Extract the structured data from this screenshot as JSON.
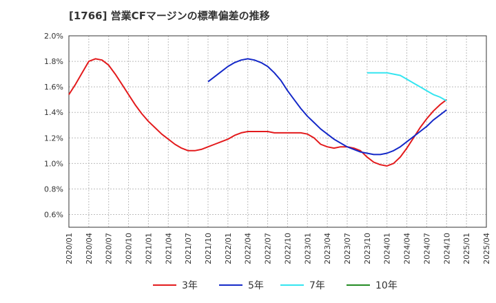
{
  "chart_data": {
    "type": "line",
    "title": "[1766]  営業CFマージンの標準偏差の推移",
    "y_axis": {
      "min": 0.005,
      "max": 0.02,
      "ticks": [
        "2.0%",
        "1.8%",
        "1.6%",
        "1.4%",
        "1.2%",
        "1.0%",
        "0.8%",
        "0.6%"
      ],
      "tick_values": [
        0.02,
        0.018,
        0.016,
        0.014,
        0.012,
        0.01,
        0.008,
        0.006
      ],
      "grid": true
    },
    "x_axis": {
      "ticks": [
        "2020/01",
        "2020/04",
        "2020/07",
        "2020/10",
        "2021/01",
        "2021/04",
        "2021/07",
        "2021/10",
        "2022/01",
        "2022/04",
        "2022/07",
        "2022/10",
        "2023/01",
        "2023/04",
        "2023/07",
        "2023/10",
        "2024/01",
        "2024/04",
        "2024/07",
        "2024/10",
        "2025/01",
        "2025/04"
      ],
      "grid": true
    },
    "legend_position": "bottom",
    "series": [
      {
        "name": "3年",
        "color": "#e31a1c",
        "points": [
          [
            "2020/01",
            0.0154
          ],
          [
            "2020/02",
            0.0162
          ],
          [
            "2020/03",
            0.0171
          ],
          [
            "2020/04",
            0.018
          ],
          [
            "2020/05",
            0.0182
          ],
          [
            "2020/06",
            0.0181
          ],
          [
            "2020/07",
            0.0177
          ],
          [
            "2020/08",
            0.017
          ],
          [
            "2020/09",
            0.0162
          ],
          [
            "2020/10",
            0.0154
          ],
          [
            "2020/11",
            0.0146
          ],
          [
            "2020/12",
            0.0139
          ],
          [
            "2021/01",
            0.0133
          ],
          [
            "2021/02",
            0.0128
          ],
          [
            "2021/03",
            0.0123
          ],
          [
            "2021/04",
            0.0119
          ],
          [
            "2021/05",
            0.0115
          ],
          [
            "2021/06",
            0.0112
          ],
          [
            "2021/07",
            0.011
          ],
          [
            "2021/08",
            0.011
          ],
          [
            "2021/09",
            0.0111
          ],
          [
            "2021/10",
            0.0113
          ],
          [
            "2021/11",
            0.0115
          ],
          [
            "2021/12",
            0.0117
          ],
          [
            "2022/01",
            0.0119
          ],
          [
            "2022/02",
            0.0122
          ],
          [
            "2022/03",
            0.0124
          ],
          [
            "2022/04",
            0.0125
          ],
          [
            "2022/05",
            0.0125
          ],
          [
            "2022/06",
            0.0125
          ],
          [
            "2022/07",
            0.0125
          ],
          [
            "2022/08",
            0.0124
          ],
          [
            "2022/09",
            0.0124
          ],
          [
            "2022/10",
            0.0124
          ],
          [
            "2022/11",
            0.0124
          ],
          [
            "2022/12",
            0.0124
          ],
          [
            "2023/01",
            0.0123
          ],
          [
            "2023/02",
            0.012
          ],
          [
            "2023/03",
            0.0115
          ],
          [
            "2023/04",
            0.0113
          ],
          [
            "2023/05",
            0.0112
          ],
          [
            "2023/06",
            0.0113
          ],
          [
            "2023/07",
            0.0113
          ],
          [
            "2023/08",
            0.0112
          ],
          [
            "2023/09",
            0.011
          ],
          [
            "2023/10",
            0.0105
          ],
          [
            "2023/11",
            0.0101
          ],
          [
            "2023/12",
            0.0099
          ],
          [
            "2024/01",
            0.0098
          ],
          [
            "2024/02",
            0.01
          ],
          [
            "2024/03",
            0.0105
          ],
          [
            "2024/04",
            0.0112
          ],
          [
            "2024/05",
            0.012
          ],
          [
            "2024/06",
            0.0128
          ],
          [
            "2024/07",
            0.0135
          ],
          [
            "2024/08",
            0.0141
          ],
          [
            "2024/09",
            0.0146
          ],
          [
            "2024/10",
            0.015
          ]
        ]
      },
      {
        "name": "5年",
        "color": "#1428c8",
        "points": [
          [
            "2021/10",
            0.0164
          ],
          [
            "2021/11",
            0.0168
          ],
          [
            "2021/12",
            0.0172
          ],
          [
            "2022/01",
            0.0176
          ],
          [
            "2022/02",
            0.0179
          ],
          [
            "2022/03",
            0.0181
          ],
          [
            "2022/04",
            0.0182
          ],
          [
            "2022/05",
            0.0181
          ],
          [
            "2022/06",
            0.0179
          ],
          [
            "2022/07",
            0.0176
          ],
          [
            "2022/08",
            0.0171
          ],
          [
            "2022/09",
            0.0165
          ],
          [
            "2022/10",
            0.0157
          ],
          [
            "2022/11",
            0.015
          ],
          [
            "2022/12",
            0.0143
          ],
          [
            "2023/01",
            0.0137
          ],
          [
            "2023/02",
            0.0132
          ],
          [
            "2023/03",
            0.0127
          ],
          [
            "2023/04",
            0.0123
          ],
          [
            "2023/05",
            0.0119
          ],
          [
            "2023/06",
            0.0116
          ],
          [
            "2023/07",
            0.0113
          ],
          [
            "2023/08",
            0.0111
          ],
          [
            "2023/09",
            0.0109
          ],
          [
            "2023/10",
            0.0108
          ],
          [
            "2023/11",
            0.0107
          ],
          [
            "2023/12",
            0.0107
          ],
          [
            "2024/01",
            0.0108
          ],
          [
            "2024/02",
            0.011
          ],
          [
            "2024/03",
            0.0113
          ],
          [
            "2024/04",
            0.0117
          ],
          [
            "2024/05",
            0.0121
          ],
          [
            "2024/06",
            0.0125
          ],
          [
            "2024/07",
            0.0129
          ],
          [
            "2024/08",
            0.0134
          ],
          [
            "2024/09",
            0.0138
          ],
          [
            "2024/10",
            0.0142
          ]
        ]
      },
      {
        "name": "7年",
        "color": "#33e5f0",
        "points": [
          [
            "2023/10",
            0.0171
          ],
          [
            "2023/11",
            0.0171
          ],
          [
            "2023/12",
            0.0171
          ],
          [
            "2024/01",
            0.0171
          ],
          [
            "2024/02",
            0.017
          ],
          [
            "2024/03",
            0.0169
          ],
          [
            "2024/04",
            0.0166
          ],
          [
            "2024/05",
            0.0163
          ],
          [
            "2024/06",
            0.016
          ],
          [
            "2024/07",
            0.0157
          ],
          [
            "2024/08",
            0.0154
          ],
          [
            "2024/09",
            0.0152
          ],
          [
            "2024/10",
            0.0149
          ]
        ]
      },
      {
        "name": "10年",
        "color": "#228b22",
        "points": []
      }
    ]
  }
}
